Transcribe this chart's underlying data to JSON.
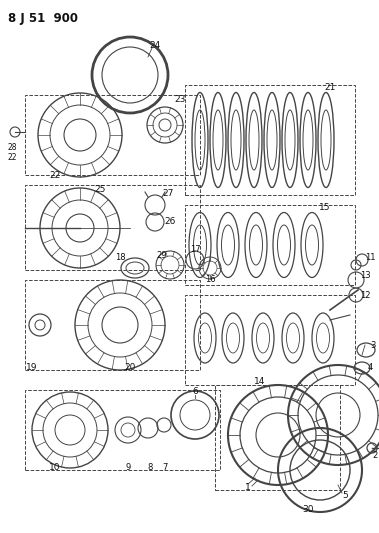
{
  "title": "8 J 51  900",
  "bg_color": "#ffffff",
  "line_color": "#444444",
  "dark_color": "#111111",
  "figsize": [
    3.79,
    5.33
  ],
  "dpi": 100
}
